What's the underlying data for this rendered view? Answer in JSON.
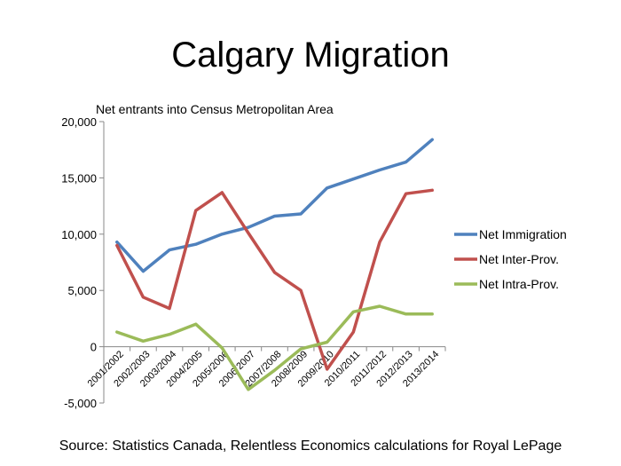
{
  "slide": {
    "title": "Calgary Migration",
    "source": "Source: Statistics Canada, Relentless Economics calculations for Royal LePage"
  },
  "chart_data": {
    "type": "line",
    "title": "",
    "subtitle": "Net entrants into Census Metropolitan Area",
    "xlabel": "",
    "ylabel": "",
    "categories": [
      "2001/2002",
      "2002/2003",
      "2003/2004",
      "2004/2005",
      "2005/2006",
      "2006/2007",
      "2007/2008",
      "2008/2009",
      "2009/2010",
      "2010/2011",
      "2011/2012",
      "2012/2013",
      "2013/2014"
    ],
    "y_ticks": [
      "-5,000",
      "0",
      "5,000",
      "10,000",
      "15,000",
      "20,000"
    ],
    "ylim": [
      -5000,
      20000
    ],
    "grid": false,
    "legend_position": "right",
    "series": [
      {
        "name": "Net Immigration",
        "color": "#4F81BD",
        "values": [
          9300,
          6700,
          8600,
          9100,
          10000,
          10600,
          11600,
          11800,
          14100,
          14900,
          15700,
          16400,
          18400
        ]
      },
      {
        "name": "Net Inter-Prov.",
        "color": "#C0504D",
        "values": [
          9000,
          4400,
          3400,
          12100,
          13700,
          10100,
          6600,
          5000,
          -2000,
          1300,
          9300,
          13600,
          13900
        ]
      },
      {
        "name": "Net Intra-Prov.",
        "color": "#9BBB59",
        "values": [
          1300,
          500,
          1100,
          2000,
          -100,
          -3800,
          -2100,
          -200,
          400,
          3100,
          3600,
          2900,
          2900
        ]
      }
    ]
  }
}
